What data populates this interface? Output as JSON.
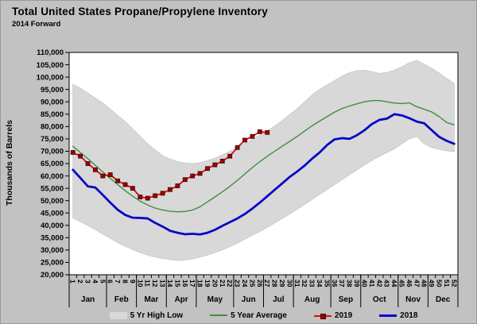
{
  "title": "Total United States Propane/Propylene Inventory",
  "subtitle": "2014 Forward",
  "y_axis_label": "Thousands of Barrels",
  "legend": {
    "high_low": "5 Yr High Low",
    "average": "5 Year Average",
    "y2019": "2019",
    "y2018": "2018"
  },
  "colors": {
    "page_bg": "#c2c2c2",
    "plot_bg": "#ffffff",
    "band": "#d8d8d8",
    "band_edge": "#cccccc",
    "average": "#3f8f3f",
    "y2019": "#cc1111",
    "y2019_marker": "#a00000",
    "y2018": "#0808c8",
    "axis": "#000000"
  },
  "chart_data": {
    "type": "line",
    "title": "Total United States Propane/Propylene Inventory",
    "subtitle": "2014 Forward",
    "ylabel": "Thousands of Barrels",
    "y_min": 20000,
    "y_max": 110000,
    "y_step": 5000,
    "y_tick_labels": [
      "110,000",
      "105,000",
      "100,000",
      "95,000",
      "90,000",
      "85,000",
      "80,000",
      "75,000",
      "70,000",
      "65,000",
      "60,000",
      "55,000",
      "50,000",
      "45,000",
      "40,000",
      "35,000",
      "30,000",
      "25,000",
      "20,000"
    ],
    "week_labels": [
      "1",
      "2",
      "3",
      "4",
      "5",
      "6",
      "7",
      "8",
      "9",
      "10",
      "11",
      "12",
      "13",
      "14",
      "15",
      "16",
      "17",
      "18",
      "19",
      "20",
      "21",
      "22",
      "23",
      "24",
      "25",
      "26",
      "27",
      "28",
      "29",
      "30",
      "31",
      "32",
      "33",
      "34",
      "35",
      "36",
      "37",
      "38",
      "39",
      "40",
      "41",
      "42",
      "43",
      "44",
      "45",
      "46",
      "47",
      "48",
      "49",
      "50",
      "51",
      "52"
    ],
    "months": [
      {
        "label": "Jan",
        "weeks": 5
      },
      {
        "label": "Feb",
        "weeks": 4
      },
      {
        "label": "Mar",
        "weeks": 4
      },
      {
        "label": "Apr",
        "weeks": 4
      },
      {
        "label": "May",
        "weeks": 5
      },
      {
        "label": "Jun",
        "weeks": 4
      },
      {
        "label": "Jul",
        "weeks": 4
      },
      {
        "label": "Aug",
        "weeks": 5
      },
      {
        "label": "Sep",
        "weeks": 4
      },
      {
        "label": "Oct",
        "weeks": 5
      },
      {
        "label": "Nov",
        "weeks": 4
      },
      {
        "label": "Dec",
        "weeks": 4
      }
    ],
    "legend_position": "bottom",
    "grid": false,
    "series": [
      {
        "name": "5 Yr High Low",
        "type": "band",
        "high": [
          97000,
          95500,
          93500,
          91500,
          89500,
          87000,
          84500,
          82000,
          79000,
          76000,
          73000,
          70500,
          68200,
          66800,
          65800,
          65200,
          65000,
          65400,
          66200,
          67200,
          68500,
          70000,
          71600,
          73200,
          74800,
          76400,
          78200,
          80200,
          82400,
          84800,
          87200,
          90000,
          92800,
          95000,
          96800,
          98600,
          100400,
          101800,
          102600,
          102800,
          102200,
          101500,
          101800,
          102800,
          104200,
          105800,
          106800,
          105200,
          103600,
          101600,
          99400,
          97400
        ],
        "low": [
          43000,
          41500,
          40000,
          38300,
          36500,
          34800,
          33000,
          31500,
          30200,
          29000,
          28000,
          27200,
          26600,
          26200,
          25800,
          26000,
          26400,
          27200,
          28000,
          29000,
          30100,
          31400,
          32800,
          34400,
          36000,
          37500,
          39200,
          41000,
          42800,
          44600,
          46500,
          48500,
          50500,
          52500,
          54500,
          56500,
          58500,
          60500,
          62500,
          64500,
          66300,
          68000,
          69500,
          71000,
          73000,
          75000,
          76000,
          73000,
          71500,
          70800,
          70200,
          69800
        ]
      },
      {
        "name": "5 Year Average",
        "type": "line",
        "values": [
          72000,
          69500,
          67000,
          64300,
          61600,
          59000,
          56500,
          54000,
          51800,
          49800,
          48200,
          47000,
          46200,
          45700,
          45500,
          45600,
          46200,
          47500,
          49500,
          51500,
          53600,
          55800,
          58200,
          60800,
          63400,
          65800,
          68000,
          70000,
          72000,
          74000,
          76000,
          78200,
          80300,
          82200,
          84000,
          85800,
          87300,
          88300,
          89200,
          90000,
          90500,
          90500,
          90000,
          89500,
          89300,
          89600,
          88000,
          87000,
          85900,
          84000,
          81600,
          80700
        ]
      },
      {
        "name": "2019",
        "type": "line-marker",
        "values": [
          69500,
          68000,
          65000,
          62500,
          60000,
          60500,
          58000,
          56500,
          55000,
          51500,
          51000,
          52000,
          53000,
          54500,
          56000,
          58500,
          60000,
          61000,
          63000,
          64500,
          66000,
          68000,
          71500,
          74500,
          76000,
          77900,
          77600
        ]
      },
      {
        "name": "2018",
        "type": "line",
        "values": [
          62500,
          59200,
          55800,
          55300,
          52300,
          49200,
          46300,
          44200,
          43100,
          43000,
          42800,
          41000,
          39500,
          37800,
          37000,
          36400,
          36600,
          36300,
          37000,
          38200,
          39800,
          41300,
          42800,
          44600,
          46800,
          49200,
          51800,
          54400,
          57000,
          59600,
          61800,
          64200,
          67000,
          69500,
          72500,
          74800,
          75300,
          75000,
          76500,
          78500,
          81000,
          82700,
          83200,
          85000,
          84500,
          83400,
          82000,
          81300,
          78500,
          75800,
          74200,
          73000
        ]
      }
    ]
  }
}
